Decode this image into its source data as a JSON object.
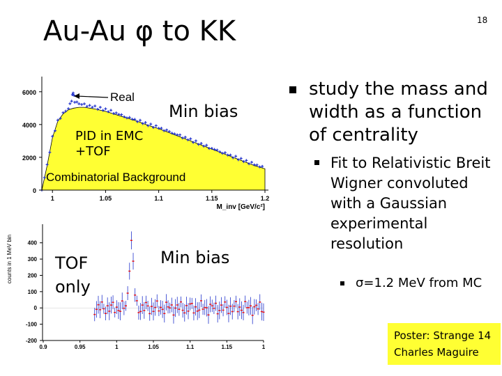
{
  "slide": {
    "title": "Au-Au φ to KK",
    "page_number": "18"
  },
  "labels": {
    "min_bias_top": "Min bias",
    "pid_line1": "PID in EMC",
    "pid_line2": "+TOF",
    "tof_line1": "TOF",
    "tof_line2": "only",
    "min_bias_bottom": "Min bias"
  },
  "bullets": {
    "main": "study the mass and width as a function of centrality",
    "sub": "Fit to Relativistic Breit Wigner convoluted with a Gaussian experimental resolution",
    "subsub": "σ=1.2 MeV from MC"
  },
  "poster": {
    "line1": "Poster: Strange 14",
    "line2": "Charles Maguire"
  },
  "colors": {
    "fill_yellow": "#ffff33",
    "data_blue": "#2233cc",
    "bg_red": "#ee1111"
  },
  "chart_data": [
    {
      "type": "area",
      "xlabel": "M_inv [GeV/c²]",
      "ylabel": "",
      "title": "",
      "xlim": [
        0.99,
        1.2
      ],
      "ylim": [
        0,
        6500
      ],
      "x_ticks": [
        "1",
        "1.05",
        "1.1",
        "1.15",
        "1.2"
      ],
      "y_ticks": [
        "0",
        "2000",
        "4000",
        "6000"
      ],
      "annotations": [
        "Real",
        "Combinatorial Background"
      ],
      "series": [
        {
          "name": "Real",
          "x": [
            0.99,
            0.995,
            1.0,
            1.005,
            1.01,
            1.015,
            1.018,
            1.0195,
            1.021,
            1.025,
            1.03,
            1.04,
            1.05,
            1.06,
            1.07,
            1.08,
            1.09,
            1.1,
            1.11,
            1.12,
            1.13,
            1.14,
            1.15,
            1.16,
            1.17,
            1.18,
            1.19,
            1.2
          ],
          "values": [
            0,
            1500,
            3200,
            4200,
            4700,
            5000,
            5500,
            6000,
            5400,
            5250,
            5200,
            5050,
            4900,
            4700,
            4450,
            4250,
            4000,
            3800,
            3550,
            3300,
            3050,
            2800,
            2550,
            2300,
            2050,
            1800,
            1560,
            1350
          ]
        },
        {
          "name": "Combinatorial Background",
          "x": [
            0.99,
            0.995,
            1.0,
            1.005,
            1.01,
            1.015,
            1.02,
            1.025,
            1.03,
            1.04,
            1.05,
            1.06,
            1.07,
            1.08,
            1.09,
            1.1,
            1.11,
            1.12,
            1.13,
            1.14,
            1.15,
            1.16,
            1.17,
            1.18,
            1.19,
            1.2
          ],
          "values": [
            0,
            1500,
            3200,
            4200,
            4650,
            4900,
            5000,
            5050,
            5050,
            4950,
            4800,
            4600,
            4400,
            4200,
            3950,
            3750,
            3500,
            3250,
            3000,
            2750,
            2500,
            2250,
            2000,
            1750,
            1500,
            1300
          ]
        }
      ]
    },
    {
      "type": "scatter",
      "ylabel": "counts in 1 MeV bin",
      "xlabel": "",
      "title": "",
      "xlim": [
        0.9,
        1.2
      ],
      "ylim": [
        -200,
        480
      ],
      "x_ticks": [
        "0.9",
        "0.95",
        "1",
        "1.05",
        "1.1",
        "1.15",
        "1"
      ],
      "y_ticks": [
        "-200",
        "-100",
        "0",
        "100",
        "200",
        "300",
        "400"
      ],
      "peak": {
        "x": 1.02,
        "y": 400
      }
    }
  ]
}
